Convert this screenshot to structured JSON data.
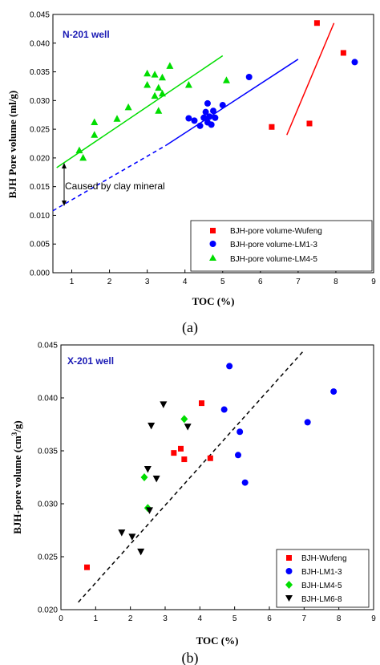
{
  "chart_data": [
    {
      "type": "scatter",
      "panel_label": "(a)",
      "annotation_title": "N-201 well",
      "xlabel": "TOC (%)",
      "ylabel": "BJH Pore volume (ml/g)",
      "xlim": [
        0.5,
        9.0
      ],
      "ylim": [
        0.0,
        0.045
      ],
      "x_ticks": [
        "1",
        "2",
        "3",
        "4",
        "5",
        "6",
        "7",
        "8",
        "9"
      ],
      "y_ticks": [
        "0.000",
        "0.005",
        "0.010",
        "0.015",
        "0.020",
        "0.025",
        "0.030",
        "0.035",
        "0.040",
        "0.045"
      ],
      "legend_position": "bottom-right",
      "arrow_annotation": "Caused by clay mineral",
      "colors": {
        "Wufeng": "#ff0000",
        "LM1-3": "#0000ff",
        "LM4-5": "#00dd00"
      },
      "series": [
        {
          "name": "BJH-pore volume-Wufeng",
          "marker": "square",
          "color": "#ff0000",
          "points": [
            [
              7.5,
              0.0435
            ],
            [
              8.2,
              0.0383
            ],
            [
              6.3,
              0.0254
            ],
            [
              7.3,
              0.026
            ]
          ]
        },
        {
          "name": "BJH-pore volume-LM1-3",
          "marker": "circle",
          "color": "#0000ff",
          "points": [
            [
              8.5,
              0.0367
            ],
            [
              5.7,
              0.0341
            ],
            [
              4.1,
              0.0269
            ],
            [
              4.25,
              0.0265
            ],
            [
              4.4,
              0.0256
            ],
            [
              4.5,
              0.027
            ],
            [
              4.55,
              0.028
            ],
            [
              4.6,
              0.0295
            ],
            [
              4.6,
              0.0262
            ],
            [
              4.65,
              0.0272
            ],
            [
              4.7,
              0.0258
            ],
            [
              4.75,
              0.0282
            ],
            [
              4.8,
              0.027
            ],
            [
              5.0,
              0.0292
            ]
          ]
        },
        {
          "name": "BJH-pore volume-LM4-5",
          "marker": "triangle",
          "color": "#00dd00",
          "points": [
            [
              1.2,
              0.0213
            ],
            [
              1.3,
              0.02
            ],
            [
              1.6,
              0.024
            ],
            [
              1.6,
              0.0262
            ],
            [
              2.2,
              0.0268
            ],
            [
              2.5,
              0.0288
            ],
            [
              3.0,
              0.0327
            ],
            [
              3.0,
              0.0347
            ],
            [
              3.2,
              0.0345
            ],
            [
              3.2,
              0.0308
            ],
            [
              3.3,
              0.0282
            ],
            [
              3.3,
              0.0322
            ],
            [
              3.4,
              0.034
            ],
            [
              3.4,
              0.0312
            ],
            [
              3.6,
              0.036
            ],
            [
              4.1,
              0.0327
            ],
            [
              5.1,
              0.0335
            ]
          ]
        }
      ],
      "fit_lines": [
        {
          "series": "Wufeng",
          "color": "#ff0000",
          "style": "solid",
          "from": [
            6.7,
            0.024
          ],
          "to": [
            7.95,
            0.0435
          ]
        },
        {
          "series": "LM1-3",
          "color": "#0000ff",
          "style": "solid",
          "from": [
            3.5,
            0.0222
          ],
          "to": [
            7.0,
            0.0372
          ]
        },
        {
          "series": "LM1-3 extrapolation",
          "color": "#0000ff",
          "style": "dashed",
          "from": [
            0.5,
            0.0108
          ],
          "to": [
            3.5,
            0.0222
          ]
        },
        {
          "series": "LM4-5",
          "color": "#00dd00",
          "style": "solid",
          "from": [
            0.6,
            0.0183
          ],
          "to": [
            5.0,
            0.0378
          ]
        }
      ]
    },
    {
      "type": "scatter",
      "panel_label": "(b)",
      "annotation_title": "X-201 well",
      "xlabel": "TOC (%)",
      "ylabel_main": "BJH-pore volume (cm",
      "ylabel_sup": "3",
      "ylabel_tail": "/g)",
      "xlim": [
        0,
        9
      ],
      "ylim": [
        0.02,
        0.045
      ],
      "x_ticks": [
        "0",
        "1",
        "2",
        "3",
        "4",
        "5",
        "6",
        "7",
        "8",
        "9"
      ],
      "y_ticks": [
        "0.020",
        "0.025",
        "0.030",
        "0.035",
        "0.040",
        "0.045"
      ],
      "legend_position": "bottom-right",
      "colors": {
        "Wufeng": "#ff0000",
        "LM1-3": "#0000ff",
        "LM4-5": "#00dd00",
        "LM6-8": "#000000"
      },
      "series": [
        {
          "name": "BJH-Wufeng",
          "marker": "square",
          "color": "#ff0000",
          "points": [
            [
              0.75,
              0.024
            ],
            [
              3.25,
              0.0348
            ],
            [
              3.45,
              0.0352
            ],
            [
              3.55,
              0.0342
            ],
            [
              4.05,
              0.0395
            ],
            [
              4.3,
              0.0343
            ]
          ]
        },
        {
          "name": "BJH-LM1-3",
          "marker": "circle",
          "color": "#0000ff",
          "points": [
            [
              4.85,
              0.043
            ],
            [
              4.7,
              0.0389
            ],
            [
              5.15,
              0.0368
            ],
            [
              5.1,
              0.0346
            ],
            [
              5.3,
              0.032
            ],
            [
              7.1,
              0.0377
            ],
            [
              7.85,
              0.0406
            ]
          ]
        },
        {
          "name": "BJH-LM4-5",
          "marker": "diamond",
          "color": "#00dd00",
          "points": [
            [
              3.55,
              0.038
            ],
            [
              2.4,
              0.0325
            ],
            [
              2.5,
              0.0296
            ]
          ]
        },
        {
          "name": "BJH-LM6-8",
          "marker": "triangle-down",
          "color": "#000000",
          "points": [
            [
              2.95,
              0.0394
            ],
            [
              3.65,
              0.0373
            ],
            [
              2.6,
              0.0374
            ],
            [
              2.5,
              0.0333
            ],
            [
              2.75,
              0.0324
            ],
            [
              2.55,
              0.0294
            ],
            [
              1.75,
              0.0273
            ],
            [
              2.05,
              0.0269
            ],
            [
              2.3,
              0.0255
            ]
          ]
        }
      ],
      "fit_lines": [
        {
          "series": "all",
          "color": "#000000",
          "style": "dashed",
          "from": [
            0.5,
            0.0207
          ],
          "to": [
            7.0,
            0.0445
          ]
        }
      ]
    }
  ]
}
